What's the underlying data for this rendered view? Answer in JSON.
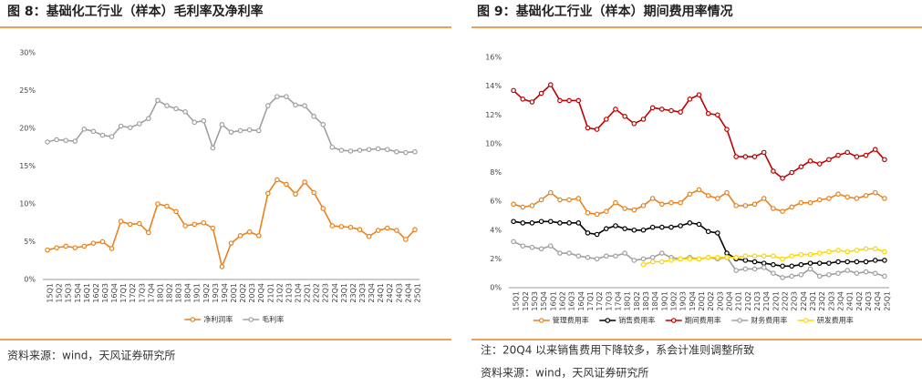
{
  "chart_data": [
    {
      "type": "line",
      "title": "图 8：基础化工行业（样本）毛利率及净利率",
      "source": "资料来源：wind，天风证券研究所",
      "categories": [
        "15Q1",
        "15Q2",
        "15Q3",
        "15Q4",
        "16Q1",
        "16Q2",
        "16Q3",
        "16Q4",
        "17Q1",
        "17Q2",
        "17Q3",
        "17Q4",
        "18Q1",
        "18Q2",
        "18Q3",
        "18Q4",
        "19Q1",
        "19Q2",
        "19Q3",
        "19Q4",
        "20Q1",
        "20Q2",
        "20Q3",
        "20Q4",
        "21Q1",
        "21Q2",
        "21Q3",
        "21Q4",
        "22Q1",
        "22Q2",
        "22Q3",
        "22Q4",
        "23Q1",
        "23Q2",
        "23Q3",
        "23Q4",
        "24Q1",
        "24Q2",
        "24Q3",
        "24Q4",
        "25Q1"
      ],
      "series": [
        {
          "name": "净利润率",
          "color": "#e8821e",
          "values": [
            3.9,
            4.2,
            4.4,
            4.2,
            4.4,
            4.8,
            5.0,
            4.1,
            7.7,
            7.3,
            7.4,
            6.2,
            10.0,
            9.7,
            9.0,
            7.1,
            7.3,
            7.5,
            6.8,
            1.7,
            4.8,
            5.8,
            6.3,
            5.8,
            11.4,
            13.2,
            12.6,
            11.3,
            12.9,
            11.5,
            9.4,
            7.1,
            7.0,
            6.9,
            6.6,
            5.7,
            6.5,
            6.8,
            6.5,
            5.3,
            6.6
          ]
        },
        {
          "name": "毛利率",
          "color": "#a0a0a0",
          "values": [
            18.2,
            18.5,
            18.4,
            18.3,
            19.9,
            19.6,
            19.1,
            18.9,
            20.3,
            20.1,
            20.6,
            21.3,
            23.7,
            23.0,
            22.6,
            22.2,
            20.8,
            21.0,
            17.4,
            20.5,
            19.5,
            19.7,
            19.8,
            19.7,
            23.0,
            24.2,
            24.2,
            23.1,
            23.0,
            21.6,
            20.5,
            17.5,
            17.1,
            17.0,
            17.1,
            17.2,
            17.3,
            17.2,
            16.9,
            16.8,
            16.9
          ]
        }
      ],
      "ylim": [
        0,
        30
      ],
      "yticks": [
        {
          "value": 0,
          "label": "0%"
        },
        {
          "value": 5,
          "label": "5%"
        },
        {
          "value": 10,
          "label": "10%"
        },
        {
          "value": 15,
          "label": "15%"
        },
        {
          "value": 20,
          "label": "20%"
        },
        {
          "value": 25,
          "label": "25%"
        },
        {
          "value": 30,
          "label": "30%"
        }
      ],
      "grid": false
    },
    {
      "type": "line",
      "title": "图 9：基础化工行业（样本）期间费用率情况",
      "note": "注：20Q4 以来销售费用下降较多，系会计准则调整所致",
      "source": "资料来源：wind，天风证券研究所",
      "categories": [
        "15Q1",
        "15Q2",
        "15Q3",
        "15Q4",
        "16Q1",
        "16Q2",
        "16Q3",
        "16Q4",
        "17Q1",
        "17Q2",
        "17Q3",
        "17Q4",
        "18Q1",
        "18Q2",
        "18Q3",
        "18Q4",
        "19Q1",
        "19Q2",
        "19Q3",
        "19Q4",
        "20Q1",
        "20Q2",
        "20Q3",
        "20Q4",
        "21Q1",
        "21Q2",
        "21Q3",
        "21Q4",
        "22Q1",
        "22Q2",
        "22Q3",
        "22Q4",
        "23Q1",
        "23Q2",
        "23Q3",
        "23Q4",
        "24Q1",
        "24Q2",
        "24Q3",
        "24Q4",
        "25Q1"
      ],
      "series": [
        {
          "name": "管理费用率",
          "color": "#e8821e",
          "values": [
            5.8,
            5.6,
            5.7,
            6.1,
            6.6,
            6.1,
            6.1,
            6.2,
            5.2,
            5.1,
            5.3,
            5.9,
            5.5,
            5.4,
            5.7,
            6.2,
            5.8,
            5.9,
            5.9,
            6.5,
            6.8,
            6.4,
            6.2,
            6.6,
            5.7,
            5.7,
            5.8,
            6.2,
            5.5,
            5.3,
            5.6,
            5.9,
            5.9,
            6.1,
            6.2,
            6.5,
            6.3,
            6.2,
            6.4,
            6.6,
            6.2
          ]
        },
        {
          "name": "销售费用率",
          "color": "#000000",
          "values": [
            4.6,
            4.5,
            4.5,
            4.6,
            4.6,
            4.5,
            4.5,
            4.5,
            3.8,
            3.7,
            4.1,
            4.3,
            4.1,
            4.0,
            4.0,
            4.2,
            4.2,
            4.2,
            4.3,
            4.5,
            4.4,
            3.9,
            3.8,
            2.4,
            2.0,
            1.9,
            1.8,
            1.7,
            1.6,
            1.5,
            1.5,
            1.6,
            1.7,
            1.7,
            1.7,
            1.8,
            1.8,
            1.8,
            1.8,
            1.9,
            1.9
          ]
        },
        {
          "name": "期间费用率",
          "color": "#c00000",
          "values": [
            13.7,
            13.1,
            12.9,
            13.5,
            14.1,
            13.0,
            13.0,
            13.0,
            11.1,
            11.0,
            11.7,
            12.4,
            11.9,
            11.4,
            11.7,
            12.5,
            12.4,
            12.3,
            12.2,
            13.1,
            13.4,
            12.1,
            12.0,
            11.0,
            9.1,
            9.1,
            9.1,
            9.4,
            8.1,
            7.6,
            8.0,
            8.4,
            8.8,
            8.6,
            8.9,
            9.2,
            9.4,
            9.1,
            9.2,
            9.6,
            8.9
          ]
        },
        {
          "name": "财务费用率",
          "color": "#a0a0a0",
          "values": [
            3.2,
            2.9,
            2.8,
            2.7,
            2.9,
            2.4,
            2.4,
            2.2,
            2.1,
            2.0,
            2.2,
            2.2,
            2.4,
            1.9,
            2.0,
            2.1,
            2.4,
            2.1,
            2.0,
            2.1,
            2.0,
            2.1,
            2.0,
            2.1,
            1.2,
            1.3,
            1.3,
            1.4,
            1.0,
            0.7,
            0.8,
            0.9,
            1.3,
            0.8,
            0.9,
            1.0,
            1.2,
            1.0,
            1.1,
            1.0,
            0.8
          ]
        },
        {
          "name": "研发费用率",
          "color": "#ffd700",
          "values": [
            null,
            null,
            null,
            null,
            null,
            null,
            null,
            null,
            null,
            null,
            null,
            null,
            null,
            null,
            1.6,
            1.8,
            1.8,
            1.9,
            2.0,
            2.0,
            2.0,
            2.1,
            2.1,
            2.1,
            2.1,
            2.2,
            2.2,
            2.2,
            2.2,
            2.0,
            2.2,
            2.3,
            2.3,
            2.4,
            2.5,
            2.6,
            2.5,
            2.6,
            2.7,
            2.7,
            2.5
          ]
        }
      ],
      "ylim": [
        0,
        16
      ],
      "yticks": [
        {
          "value": 0,
          "label": "0%"
        },
        {
          "value": 2,
          "label": "2%"
        },
        {
          "value": 4,
          "label": "4%"
        },
        {
          "value": 6,
          "label": "6%"
        },
        {
          "value": 8,
          "label": "8%"
        },
        {
          "value": 10,
          "label": "10%"
        },
        {
          "value": 12,
          "label": "12%"
        },
        {
          "value": 14,
          "label": "14%"
        },
        {
          "value": 16,
          "label": "16%"
        }
      ],
      "grid": false
    }
  ]
}
